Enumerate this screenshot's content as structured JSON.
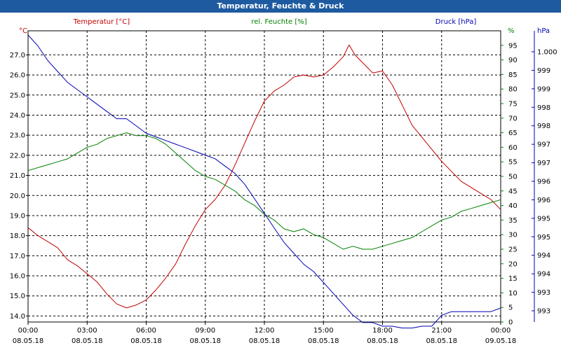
{
  "window": {
    "title": "Temperatur, Feuchte & Druck"
  },
  "colors": {
    "temperature": "#c00000",
    "humidity": "#008000",
    "pressure": "#0000b4",
    "grid": "#000000",
    "titlebar": "#1e5aa0"
  },
  "chart_data": {
    "type": "line",
    "title": "Temperatur, Feuchte & Druck",
    "grid": true,
    "x_ticks": [
      {
        "time": "00:00",
        "date": "08.05.18"
      },
      {
        "time": "03:00",
        "date": "08.05.18"
      },
      {
        "time": "06:00",
        "date": "08.05.18"
      },
      {
        "time": "09:00",
        "date": "08.05.18"
      },
      {
        "time": "12:00",
        "date": "08.05.18"
      },
      {
        "time": "15:00",
        "date": "08.05.18"
      },
      {
        "time": "18:00",
        "date": "08.05.18"
      },
      {
        "time": "21:00",
        "date": "08.05.18"
      },
      {
        "time": "00:00",
        "date": "09.05.18"
      }
    ],
    "x_range_hours": [
      0,
      24
    ],
    "axes": {
      "temperature": {
        "label": "Temperatur [°C]",
        "unit": "°C",
        "range": [
          13.7,
          28.2
        ],
        "ticks": [
          "14.0",
          "15.0",
          "16.0",
          "17.0",
          "18.0",
          "19.0",
          "20.0",
          "21.0",
          "22.0",
          "23.0",
          "24.0",
          "25.0",
          "26.0",
          "27.0"
        ]
      },
      "humidity": {
        "label": "rel. Feuchte [%]",
        "unit": "%",
        "range": [
          0,
          100
        ],
        "ticks": [
          "0",
          "5",
          "10",
          "15",
          "20",
          "25",
          "30",
          "35",
          "40",
          "45",
          "50",
          "55",
          "60",
          "65",
          "70",
          "75",
          "80",
          "85",
          "90",
          "95"
        ]
      },
      "pressure": {
        "label": "Druck [hPa]",
        "unit": "hPa",
        "ticks": [
          "993",
          "993",
          "994",
          "994",
          "995",
          "995",
          "996",
          "996",
          "997",
          "997",
          "998",
          "998",
          "999",
          "999",
          "1.000"
        ]
      }
    },
    "series": [
      {
        "name": "Temperatur [°C]",
        "axis": "temperature",
        "x": [
          0,
          0.5,
          1,
          1.5,
          2,
          2.5,
          3,
          3.5,
          4,
          4.5,
          5,
          5.5,
          6,
          6.5,
          7,
          7.5,
          8,
          8.5,
          9,
          9.5,
          10,
          10.5,
          11,
          11.5,
          12,
          12.5,
          13,
          13.5,
          14,
          14.5,
          15,
          15.5,
          16,
          16.3,
          16.6,
          17,
          17.5,
          18,
          18.5,
          19,
          19.5,
          20,
          20.5,
          21,
          21.5,
          22,
          22.5,
          23,
          23.5,
          24
        ],
        "values": [
          18.4,
          18.0,
          17.7,
          17.4,
          16.8,
          16.5,
          16.1,
          15.7,
          15.1,
          14.6,
          14.4,
          14.55,
          14.8,
          15.3,
          15.9,
          16.6,
          17.6,
          18.5,
          19.3,
          19.8,
          20.5,
          21.5,
          22.6,
          23.7,
          24.7,
          25.2,
          25.5,
          25.9,
          26.0,
          25.9,
          26.0,
          26.4,
          26.9,
          27.5,
          27.0,
          26.6,
          26.1,
          26.2,
          25.5,
          24.5,
          23.5,
          22.9,
          22.3,
          21.7,
          21.2,
          20.7,
          20.4,
          20.1,
          19.8,
          19.3
        ]
      },
      {
        "name": "rel. Feuchte [%]",
        "axis": "humidity",
        "x": [
          0,
          0.5,
          1,
          1.5,
          2,
          2.5,
          3,
          3.5,
          4,
          4.5,
          5,
          5.5,
          6,
          6.5,
          7,
          7.5,
          8,
          8.5,
          9,
          9.5,
          10,
          10.5,
          11,
          11.5,
          12,
          12.5,
          13,
          13.5,
          14,
          14.5,
          15,
          15.5,
          16,
          16.5,
          17,
          17.5,
          18,
          18.5,
          19,
          19.5,
          20,
          20.5,
          21,
          21.5,
          22,
          22.5,
          23,
          23.5,
          24
        ],
        "values": [
          52,
          53,
          54,
          55,
          56,
          58,
          60,
          61,
          63,
          64,
          65,
          64,
          64,
          63,
          61,
          58,
          55,
          52,
          50,
          49,
          47,
          45,
          42,
          40,
          37,
          35,
          32,
          31,
          32,
          30,
          29,
          27,
          25,
          26,
          25,
          25,
          26,
          27,
          28,
          29,
          31,
          33,
          35,
          36,
          38,
          39,
          40,
          41,
          42
        ]
      },
      {
        "name": "Druck [hPa]",
        "axis": "pressure",
        "x": [
          0,
          0.5,
          1,
          1.5,
          2,
          2.5,
          3,
          3.5,
          4,
          4.5,
          5,
          5.5,
          6,
          6.5,
          7,
          7.5,
          8,
          8.5,
          9,
          9.5,
          10,
          10.5,
          11,
          11.5,
          12,
          12.5,
          13,
          13.5,
          14,
          14.5,
          15,
          15.5,
          16,
          16.5,
          17,
          17.5,
          18,
          18.5,
          19,
          19.5,
          20,
          20.5,
          21,
          21.5,
          22,
          22.5,
          23,
          23.5,
          24
        ],
        "values": [
          1000.5,
          1000.2,
          999.8,
          999.5,
          999.2,
          999.0,
          998.8,
          998.6,
          998.4,
          998.2,
          998.2,
          998.0,
          997.8,
          997.7,
          997.6,
          997.5,
          997.4,
          997.3,
          997.2,
          997.1,
          996.9,
          996.7,
          996.4,
          996.0,
          995.6,
          995.2,
          994.8,
          994.5,
          994.2,
          994.0,
          993.7,
          993.4,
          993.1,
          992.8,
          992.6,
          992.6,
          992.5,
          992.5,
          992.45,
          992.45,
          992.5,
          992.5,
          992.8,
          992.9,
          992.9,
          992.9,
          992.9,
          992.9,
          993.0
        ]
      }
    ]
  }
}
